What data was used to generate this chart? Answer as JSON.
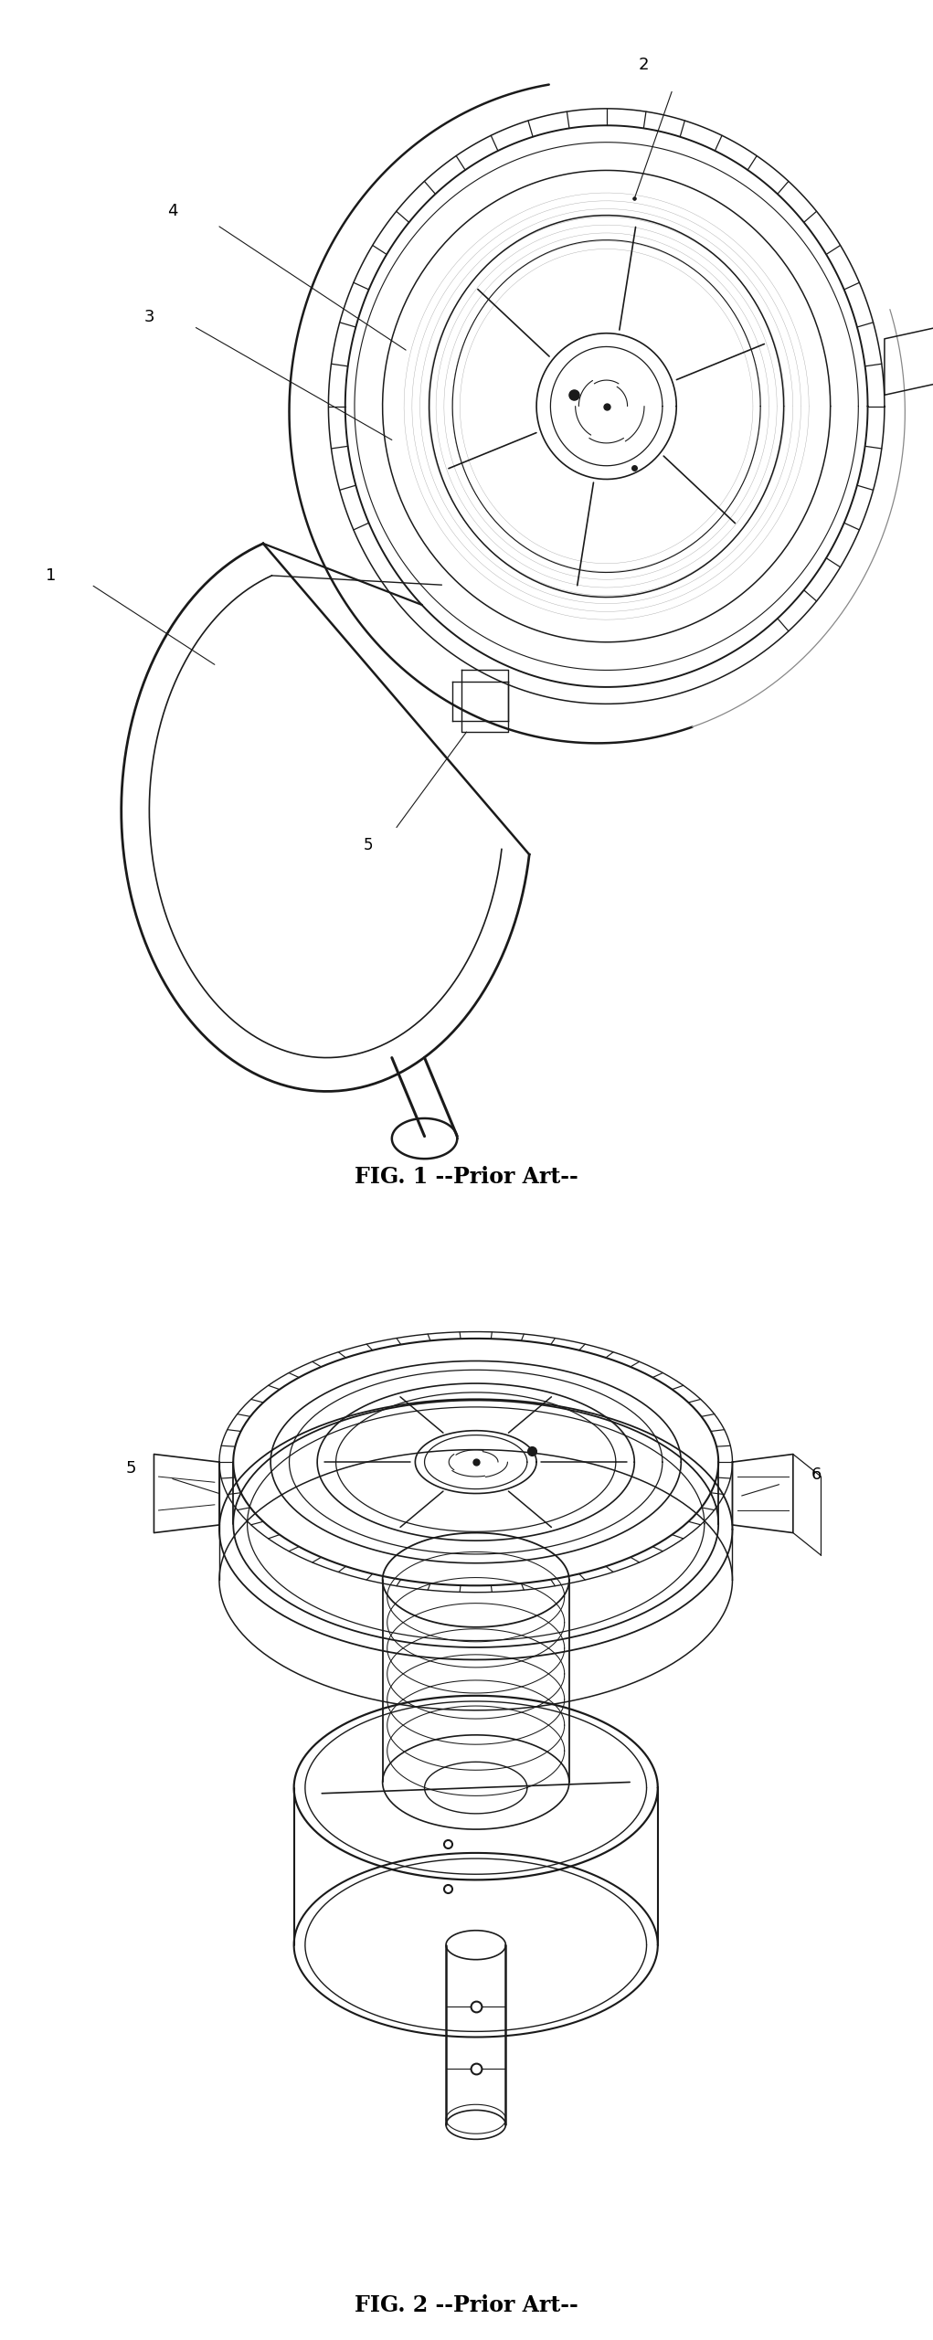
{
  "fig_width": 10.21,
  "fig_height": 25.61,
  "dpi": 100,
  "background_color": "#ffffff",
  "fig1_caption": "FIG. 1 --Prior Art--",
  "fig2_caption": "FIG. 2 --Prior Art--",
  "line_color": "#1a1a1a",
  "label_fontsize": 13,
  "caption_fontsize": 17
}
